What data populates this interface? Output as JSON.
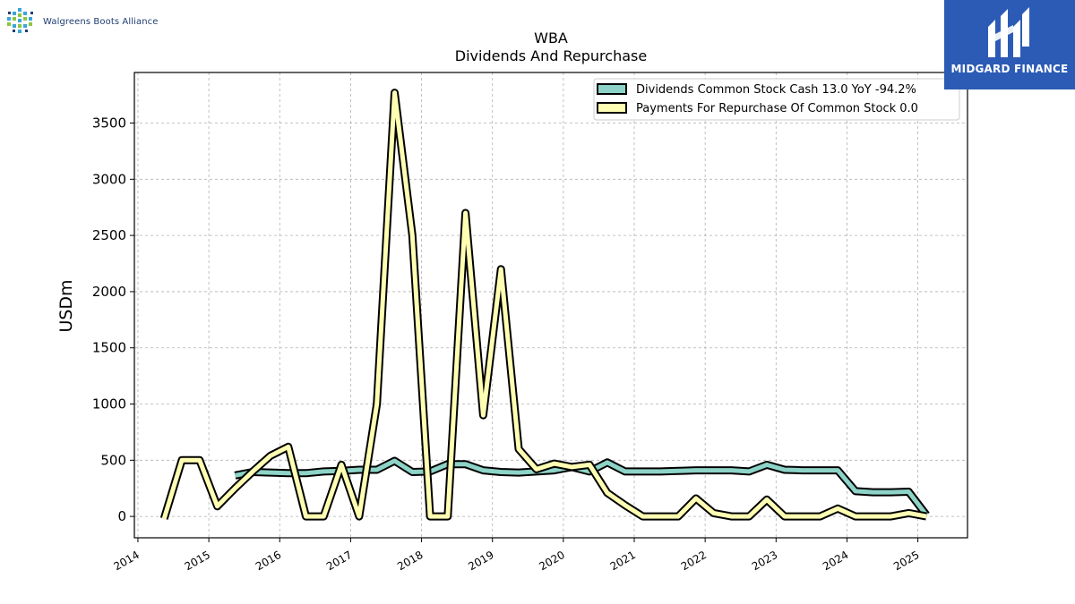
{
  "header": {
    "company_name": "Walgreens Boots Alliance",
    "brand_name": "MIDGARD FINANCE"
  },
  "colors": {
    "dividends": "#8dd3c7",
    "repurchase": "#ffffb3",
    "outline": "#000000",
    "grid": "#b0b0b0",
    "brand_bg": "#2b5bb5",
    "logo_blue": "#1f3d73"
  },
  "chart_data": {
    "type": "line",
    "title": "WBA",
    "subtitle": "Dividends And Repurchase",
    "xlabel": "",
    "ylabel": "USDm",
    "xlim": [
      2013.95,
      2025.7
    ],
    "ylim": [
      -190,
      3950
    ],
    "x_ticks": [
      "2014",
      "2015",
      "2016",
      "2017",
      "2018",
      "2019",
      "2020",
      "2021",
      "2022",
      "2023",
      "2024",
      "2025"
    ],
    "y_ticks": [
      "0",
      "500",
      "1000",
      "1500",
      "2000",
      "2500",
      "3000",
      "3500"
    ],
    "grid": true,
    "legend_position": "top-right",
    "legend": [
      "Dividends Common Stock Cash  13.0 YoY -94.2%",
      "Payments For Repurchase Of Common Stock  0.0"
    ],
    "series": [
      {
        "name": "Dividends Common Stock Cash",
        "x": [
          2015.37,
          2015.62,
          2015.87,
          2016.12,
          2016.37,
          2016.62,
          2016.87,
          2017.12,
          2017.37,
          2017.62,
          2017.87,
          2018.12,
          2018.37,
          2018.62,
          2018.87,
          2019.12,
          2019.37,
          2019.62,
          2019.87,
          2020.12,
          2020.37,
          2020.62,
          2020.87,
          2021.12,
          2021.37,
          2021.62,
          2021.87,
          2022.12,
          2022.37,
          2022.62,
          2022.87,
          2023.12,
          2023.37,
          2023.62,
          2023.87,
          2024.12,
          2024.37,
          2024.62,
          2024.87,
          2025.12
        ],
        "values": [
          365,
          395,
          390,
          385,
          385,
          400,
          405,
          415,
          415,
          495,
          395,
          400,
          465,
          465,
          410,
          395,
          390,
          400,
          410,
          440,
          400,
          480,
          400,
          400,
          400,
          405,
          410,
          410,
          410,
          400,
          460,
          415,
          410,
          410,
          410,
          225,
          215,
          215,
          220,
          13
        ]
      },
      {
        "name": "Payments For Repurchase Of Common Stock",
        "x": [
          2014.37,
          2014.62,
          2014.87,
          2015.12,
          2015.37,
          2015.62,
          2015.87,
          2016.12,
          2016.37,
          2016.62,
          2016.87,
          2017.12,
          2017.37,
          2017.62,
          2017.87,
          2018.12,
          2018.37,
          2018.62,
          2018.87,
          2019.12,
          2019.37,
          2019.62,
          2019.87,
          2020.12,
          2020.37,
          2020.62,
          2020.87,
          2021.12,
          2021.37,
          2021.62,
          2021.87,
          2022.12,
          2022.37,
          2022.62,
          2022.87,
          2023.12,
          2023.37,
          2023.62,
          2023.87,
          2024.12,
          2024.37,
          2024.62,
          2024.87,
          2025.12
        ],
        "values": [
          -20,
          500,
          500,
          90,
          250,
          400,
          540,
          620,
          0,
          0,
          460,
          0,
          1000,
          3770,
          2500,
          0,
          0,
          2700,
          900,
          2200,
          600,
          420,
          470,
          440,
          460,
          210,
          100,
          0,
          0,
          0,
          160,
          30,
          0,
          0,
          150,
          0,
          0,
          0,
          70,
          0,
          0,
          0,
          30,
          0
        ]
      }
    ]
  }
}
